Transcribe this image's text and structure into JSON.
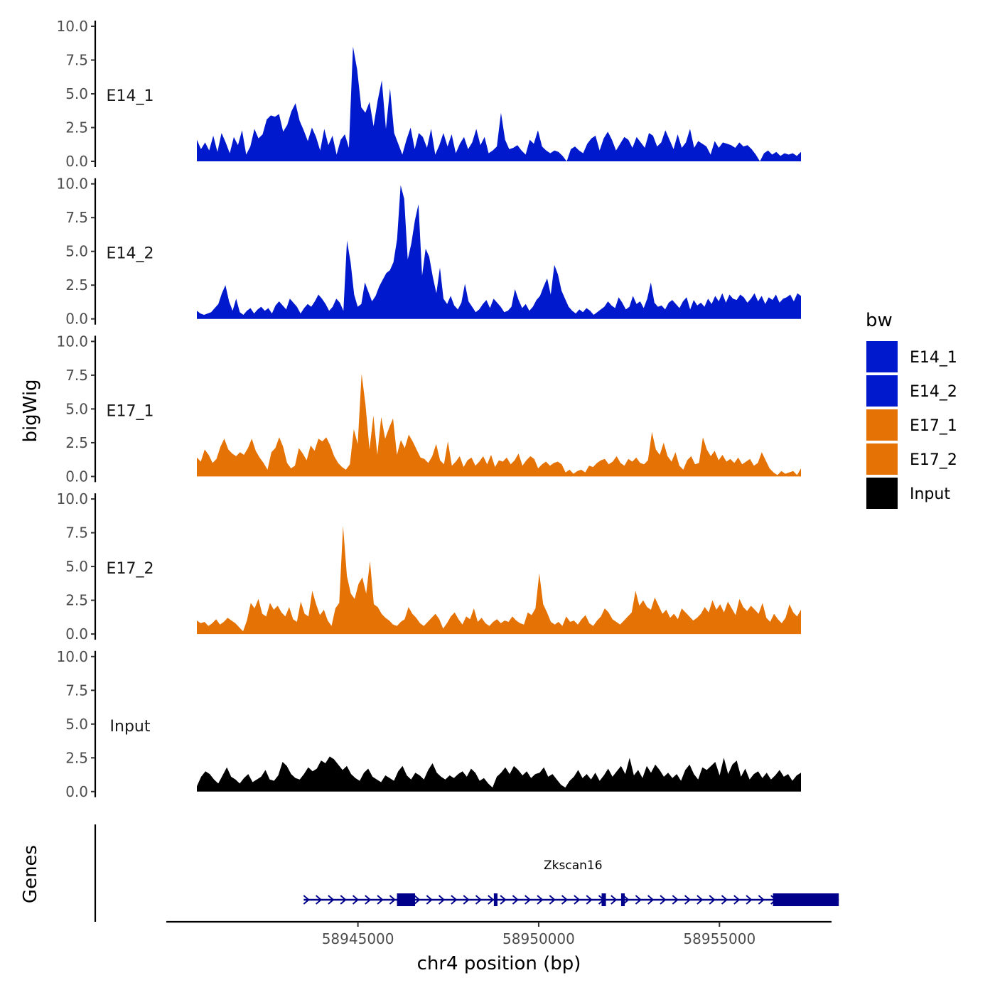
{
  "chart_data": {
    "type": "area",
    "ylabel": "bigWig",
    "xlabel": "chr4 position (bp)",
    "ylim": [
      0,
      10
    ],
    "yticks": [
      "0.0",
      "2.5",
      "5.0",
      "7.5",
      "10.0"
    ],
    "xlim": [
      58939700,
      58958100
    ],
    "xticks": [
      {
        "value": 58945000,
        "label": "58945000"
      },
      {
        "value": 58950000,
        "label": "58950000"
      },
      {
        "value": 58955000,
        "label": "58955000"
      }
    ],
    "legend": {
      "title": "bw",
      "position": "right",
      "entries": [
        {
          "label": "E14_1",
          "color": "#0019CC"
        },
        {
          "label": "E14_2",
          "color": "#0019CC"
        },
        {
          "label": "E17_1",
          "color": "#E57205"
        },
        {
          "label": "E17_2",
          "color": "#E57205"
        },
        {
          "label": "Input",
          "color": "#000000"
        }
      ]
    },
    "data_start": 58942550,
    "data_step": 166.7,
    "tracks": [
      {
        "name": "E14_1",
        "color": "#0019CC",
        "values": [
          1.6,
          0.9,
          1.4,
          0.8,
          1.9,
          0.7,
          2.1,
          1.4,
          0.6,
          1.8,
          1.2,
          2.3,
          0.5,
          1.1,
          2.4,
          1.7,
          2.0,
          3.1,
          3.4,
          3.3,
          3.5,
          2.2,
          2.7,
          3.7,
          4.3,
          3.0,
          2.3,
          1.5,
          2.5,
          1.8,
          0.8,
          2.4,
          1.2,
          1.9,
          0.5,
          1.6,
          2.0,
          1.0,
          8.5,
          6.8,
          4.0,
          3.6,
          4.4,
          2.6,
          4.5,
          6.0,
          2.4,
          5.4,
          2.1,
          1.3,
          0.5,
          1.6,
          2.5,
          0.9,
          2.1,
          1.8,
          1.0,
          2.4,
          0.5,
          1.2,
          2.1,
          1.1,
          2.0,
          0.6,
          1.3,
          1.8,
          0.9,
          1.4,
          2.4,
          1.2,
          1.8,
          0.6,
          0.8,
          1.1,
          3.6,
          1.6,
          0.9,
          1.0,
          1.2,
          0.8,
          0.5,
          1.6,
          1.3,
          2.3,
          1.1,
          0.8,
          0.6,
          0.8,
          0.7,
          0.4,
          0.0,
          0.9,
          1.1,
          0.8,
          0.6,
          1.3,
          1.7,
          1.9,
          0.8,
          1.7,
          2.2,
          1.6,
          0.8,
          1.3,
          1.8,
          1.6,
          1.0,
          1.8,
          1.4,
          1.0,
          2.1,
          1.9,
          1.1,
          1.4,
          2.3,
          1.6,
          0.9,
          2.0,
          1.0,
          1.4,
          2.4,
          1.0,
          1.5,
          1.3,
          1.1,
          0.5,
          1.5,
          1.0,
          1.4,
          1.3,
          1.2,
          1.0,
          1.4,
          1.1,
          1.2,
          0.9,
          0.5,
          0.0,
          0.6,
          0.8,
          0.5,
          0.7,
          0.4,
          0.6,
          0.5,
          0.6,
          0.4,
          0.7
        ]
      },
      {
        "name": "E14_2",
        "color": "#0019CC",
        "values": [
          0.6,
          0.4,
          0.3,
          0.4,
          0.5,
          0.8,
          1.1,
          1.9,
          2.5,
          1.3,
          0.6,
          1.5,
          0.5,
          0.3,
          0.6,
          0.8,
          0.4,
          0.7,
          0.9,
          0.6,
          0.8,
          0.4,
          1.0,
          1.3,
          1.0,
          0.7,
          1.5,
          1.2,
          0.9,
          0.4,
          0.8,
          1.1,
          0.9,
          1.3,
          1.8,
          1.5,
          1.1,
          0.6,
          0.9,
          1.5,
          1.2,
          0.6,
          5.8,
          4.2,
          1.8,
          0.9,
          1.1,
          2.7,
          2.0,
          1.3,
          1.7,
          2.4,
          2.9,
          3.4,
          3.6,
          4.2,
          5.9,
          9.9,
          8.9,
          4.4,
          5.6,
          7.3,
          8.5,
          3.2,
          5.2,
          4.6,
          3.1,
          1.9,
          3.8,
          1.5,
          1.1,
          1.7,
          1.0,
          0.7,
          1.2,
          2.6,
          1.3,
          0.9,
          0.5,
          0.7,
          1.1,
          1.4,
          0.8,
          1.5,
          1.2,
          0.9,
          0.5,
          0.6,
          0.9,
          2.2,
          1.4,
          0.8,
          1.1,
          0.6,
          0.9,
          1.4,
          1.7,
          2.4,
          3.0,
          1.8,
          4.0,
          3.3,
          2.1,
          1.5,
          0.9,
          0.6,
          0.4,
          0.7,
          0.5,
          0.8,
          0.6,
          0.3,
          0.5,
          0.7,
          0.9,
          1.3,
          1.0,
          0.8,
          1.6,
          1.2,
          0.7,
          0.9,
          1.7,
          1.1,
          1.3,
          0.8,
          1.5,
          2.7,
          1.2,
          0.9,
          1.0,
          0.7,
          1.2,
          1.4,
          1.1,
          0.8,
          1.3,
          1.6,
          0.7,
          1.4,
          1.0,
          1.2,
          0.9,
          1.5,
          1.1,
          1.7,
          1.3,
          1.9,
          1.2,
          1.8,
          1.5,
          1.4,
          1.8,
          1.6,
          1.2,
          1.5,
          1.9,
          1.3,
          1.7,
          1.1,
          1.6,
          1.4,
          1.8,
          1.2,
          1.5,
          1.6,
          1.8,
          1.3,
          1.9,
          1.7
        ]
      },
      {
        "name": "E17_1",
        "color": "#E57205",
        "values": [
          1.4,
          1.1,
          2.0,
          1.6,
          1.0,
          1.3,
          2.2,
          2.8,
          2.0,
          1.7,
          1.5,
          1.8,
          1.6,
          2.1,
          2.8,
          1.9,
          1.4,
          1.0,
          0.5,
          1.8,
          2.1,
          2.9,
          2.2,
          1.0,
          0.6,
          0.8,
          2.1,
          1.7,
          1.2,
          2.3,
          1.9,
          2.8,
          2.6,
          2.9,
          2.3,
          1.5,
          1.0,
          0.7,
          0.5,
          0.9,
          3.5,
          2.4,
          7.6,
          5.3,
          2.0,
          4.5,
          1.6,
          4.4,
          2.8,
          3.6,
          4.3,
          1.6,
          2.7,
          2.1,
          3.1,
          2.6,
          2.0,
          1.4,
          1.3,
          1.0,
          1.5,
          2.4,
          1.2,
          0.9,
          2.6,
          0.8,
          1.1,
          1.5,
          0.7,
          1.2,
          1.4,
          0.8,
          1.1,
          1.5,
          0.9,
          1.6,
          0.7,
          1.2,
          1.1,
          1.4,
          0.9,
          1.2,
          1.7,
          0.8,
          1.2,
          1.5,
          1.3,
          0.6,
          0.9,
          1.1,
          0.8,
          1.0,
          1.1,
          0.9,
          0.3,
          0.5,
          0.2,
          0.4,
          0.5,
          0.3,
          0.8,
          0.7,
          1.0,
          1.2,
          1.3,
          0.9,
          1.1,
          1.5,
          1.0,
          0.8,
          1.3,
          1.1,
          1.4,
          1.0,
          0.9,
          1.2,
          3.3,
          2.0,
          1.6,
          2.5,
          1.5,
          1.1,
          1.8,
          0.8,
          0.5,
          1.2,
          1.5,
          0.9,
          1.0,
          2.9,
          2.0,
          1.5,
          1.9,
          1.2,
          1.6,
          1.1,
          1.3,
          1.0,
          1.4,
          0.9,
          1.1,
          1.3,
          0.8,
          1.0,
          1.8,
          1.2,
          0.6,
          0.3,
          0.1,
          0.4,
          0.2,
          0.3,
          0.4,
          0.1,
          0.6
        ]
      },
      {
        "name": "E17_2",
        "color": "#E57205",
        "values": [
          1.0,
          0.8,
          0.9,
          0.6,
          0.8,
          1.1,
          0.7,
          0.9,
          1.2,
          1.0,
          0.8,
          0.5,
          0.2,
          1.0,
          2.3,
          1.9,
          2.6,
          1.5,
          1.3,
          2.3,
          1.8,
          2.1,
          1.6,
          1.3,
          2.0,
          1.1,
          0.9,
          2.4,
          1.5,
          1.3,
          3.2,
          2.2,
          1.4,
          1.8,
          1.0,
          0.6,
          1.9,
          2.3,
          8.0,
          4.3,
          3.0,
          2.6,
          3.7,
          4.2,
          3.0,
          5.4,
          2.2,
          2.0,
          1.5,
          1.2,
          1.0,
          0.7,
          0.6,
          0.9,
          1.1,
          2.0,
          1.5,
          1.2,
          0.8,
          0.6,
          0.9,
          1.2,
          1.5,
          1.1,
          0.4,
          0.8,
          1.3,
          1.6,
          1.1,
          0.7,
          1.3,
          1.1,
          1.9,
          0.9,
          1.2,
          0.8,
          0.6,
          0.9,
          1.1,
          0.8,
          1.0,
          0.9,
          1.3,
          1.0,
          0.8,
          0.7,
          1.6,
          1.4,
          1.9,
          4.5,
          2.2,
          1.6,
          0.9,
          0.7,
          0.9,
          0.6,
          1.3,
          0.9,
          1.0,
          0.7,
          1.1,
          1.4,
          0.8,
          0.6,
          1.0,
          1.3,
          1.9,
          1.6,
          1.1,
          0.9,
          0.7,
          1.0,
          1.3,
          1.6,
          3.2,
          2.1,
          2.5,
          2.0,
          1.8,
          2.7,
          2.1,
          1.5,
          1.8,
          1.2,
          1.5,
          1.1,
          1.9,
          1.6,
          1.3,
          1.0,
          1.2,
          1.5,
          2.0,
          1.6,
          2.5,
          1.8,
          2.2,
          1.6,
          2.4,
          1.9,
          1.4,
          2.6,
          2.0,
          1.7,
          2.1,
          1.8,
          1.5,
          2.3,
          1.2,
          0.9,
          1.5,
          1.1,
          0.8,
          1.2,
          2.2,
          1.6,
          1.3,
          1.8
        ]
      },
      {
        "name": "Input",
        "color": "#000000",
        "values": [
          0.4,
          1.1,
          1.5,
          1.3,
          0.9,
          0.6,
          1.2,
          1.8,
          1.1,
          0.9,
          0.6,
          1.0,
          1.3,
          0.7,
          0.9,
          1.1,
          1.6,
          0.9,
          0.8,
          1.2,
          2.2,
          1.9,
          1.3,
          1.0,
          0.9,
          1.3,
          1.8,
          1.5,
          1.7,
          2.3,
          2.1,
          2.6,
          2.4,
          2.0,
          1.6,
          1.9,
          1.3,
          1.0,
          0.8,
          1.4,
          1.7,
          1.1,
          0.9,
          0.7,
          1.2,
          1.0,
          0.8,
          1.5,
          1.9,
          1.2,
          0.9,
          1.4,
          1.2,
          0.9,
          1.6,
          2.1,
          1.4,
          1.1,
          0.9,
          1.2,
          1.0,
          1.3,
          1.5,
          1.1,
          1.7,
          1.4,
          0.8,
          1.0,
          0.6,
          0.3,
          1.1,
          1.4,
          1.8,
          1.3,
          1.9,
          1.6,
          1.2,
          1.5,
          1.0,
          1.3,
          1.4,
          1.8,
          1.1,
          1.3,
          0.9,
          0.5,
          0.3,
          0.8,
          1.1,
          1.6,
          1.0,
          1.3,
          0.9,
          1.4,
          0.8,
          1.2,
          1.7,
          1.1,
          1.5,
          1.9,
          1.3,
          2.5,
          1.2,
          1.6,
          1.0,
          1.9,
          1.4,
          2.0,
          1.6,
          1.1,
          1.4,
          1.0,
          1.3,
          0.8,
          1.6,
          2.0,
          1.3,
          0.9,
          1.8,
          1.6,
          1.9,
          2.2,
          1.2,
          2.5,
          1.3,
          2.0,
          2.3,
          1.1,
          1.7,
          0.9,
          1.3,
          1.5,
          1.0,
          1.4,
          0.9,
          1.2,
          1.6,
          1.1,
          1.3,
          0.8,
          1.2,
          1.4
        ]
      }
    ],
    "genes": {
      "title": "Genes",
      "color": "#00008B",
      "name": "Zkscan16",
      "name_position": 58950950,
      "strand": "+",
      "start": 58943500,
      "end": 58958300,
      "exons": [
        [
          58946080,
          58946580
        ],
        [
          58948760,
          58948860
        ],
        [
          58951740,
          58951860
        ],
        [
          58952280,
          58952380
        ],
        [
          58956480,
          58958300
        ]
      ]
    }
  }
}
